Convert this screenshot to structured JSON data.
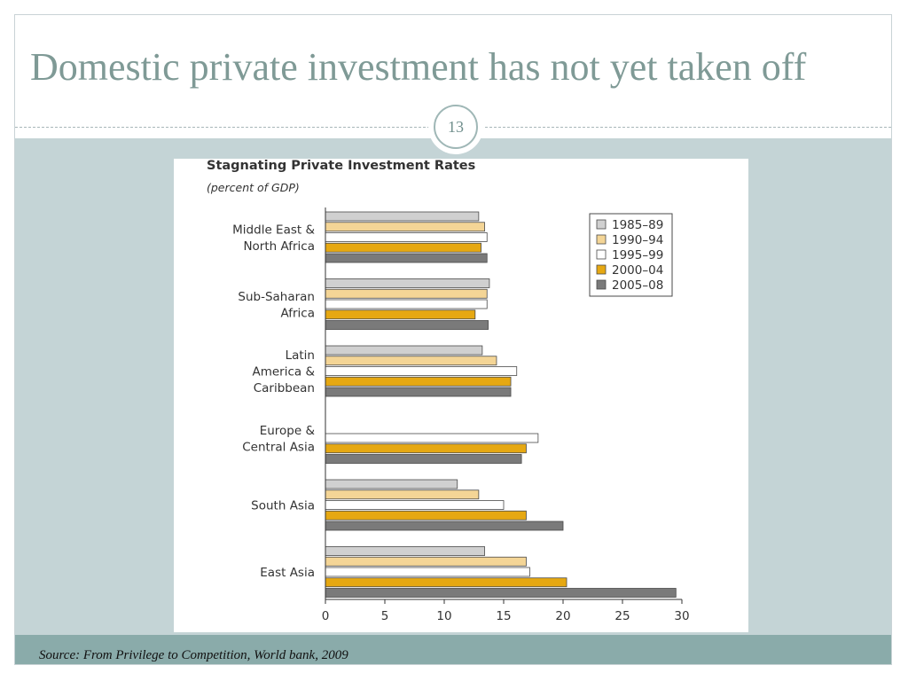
{
  "slide": {
    "title": "Domestic private investment has not yet taken off",
    "page_number": "13",
    "source": "Source:  From Privilege to Competition, World bank, 2009"
  },
  "chart_data": {
    "type": "bar",
    "orientation": "horizontal",
    "title": "Stagnating Private Investment Rates",
    "subtitle": "(percent of GDP)",
    "xlabel": "",
    "ylabel": "",
    "xlim": [
      0,
      30
    ],
    "x_ticks": [
      0,
      5,
      10,
      15,
      20,
      25,
      30
    ],
    "grid": false,
    "legend_position": "top-right",
    "categories": [
      [
        "Middle East &",
        "North Africa"
      ],
      [
        "Sub-Saharan",
        "Africa"
      ],
      [
        "Latin",
        "America &",
        "Caribbean"
      ],
      [
        "Europe &",
        "Central Asia"
      ],
      [
        "South Asia"
      ],
      [
        "East Asia"
      ]
    ],
    "series": [
      {
        "name": "1985–89",
        "color": "#d0d0d0",
        "values": [
          12.9,
          13.8,
          13.2,
          null,
          11.1,
          13.4
        ]
      },
      {
        "name": "1990–94",
        "color": "#f4d596",
        "values": [
          13.4,
          13.6,
          14.4,
          null,
          12.9,
          16.9
        ]
      },
      {
        "name": "1995–99",
        "color": "#ffffff",
        "values": [
          13.6,
          13.6,
          16.1,
          17.9,
          15.0,
          17.2
        ]
      },
      {
        "name": "2000–04",
        "color": "#e6a812",
        "values": [
          13.1,
          12.6,
          15.6,
          16.9,
          16.9,
          20.3
        ]
      },
      {
        "name": "2005–08",
        "color": "#7a7a7a",
        "values": [
          13.6,
          13.7,
          15.6,
          16.5,
          20.0,
          29.5
        ]
      }
    ]
  }
}
